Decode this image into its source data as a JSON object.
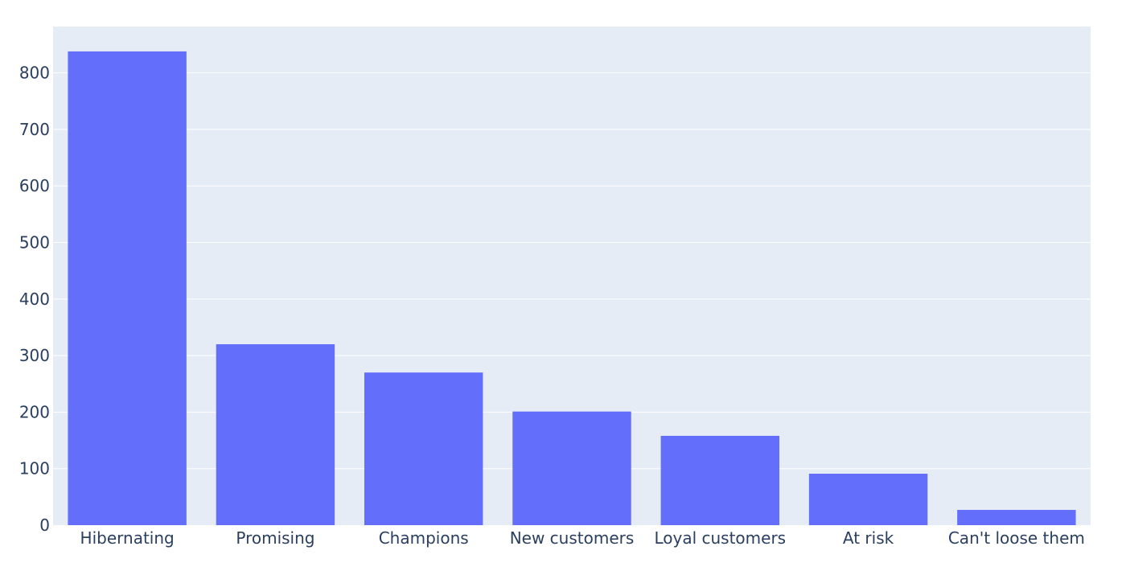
{
  "chart_data": {
    "type": "bar",
    "categories": [
      "Hibernating",
      "Promising",
      "Champions",
      "New customers",
      "Loyal customers",
      "At risk",
      "Can't loose them"
    ],
    "values": [
      838,
      320,
      270,
      201,
      158,
      91,
      27
    ],
    "title": "",
    "xlabel": "",
    "ylabel": "",
    "ylim": [
      0,
      882
    ],
    "yticks": [
      0,
      100,
      200,
      300,
      400,
      500,
      600,
      700,
      800
    ],
    "grid": "horizontal",
    "legend": "none",
    "colors": {
      "bar": "#636efa",
      "plot_background": "#e5ecf6",
      "grid": "#ffffff",
      "text": "#2a3f5f"
    }
  }
}
